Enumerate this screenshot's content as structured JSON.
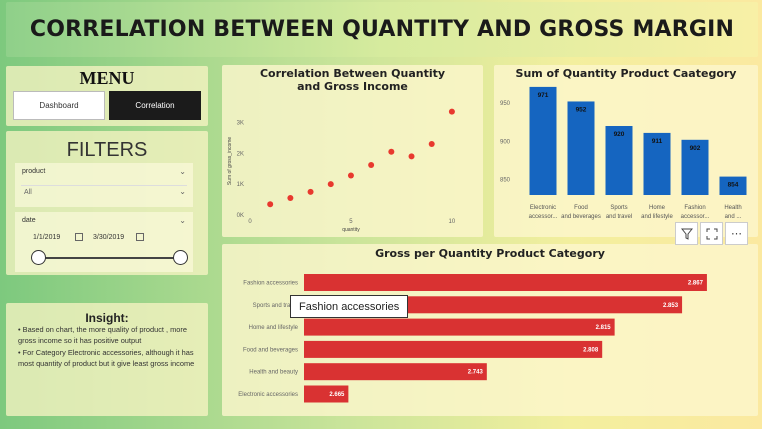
{
  "header": {
    "title": "CORRELATION BETWEEN QUANTITY AND GROSS MARGIN"
  },
  "menu": {
    "title": "MENU",
    "dashboard_label": "Dashboard",
    "correlation_label": "Correlation"
  },
  "filters": {
    "title": "FILTERS",
    "product_label": "product",
    "product_value": "All",
    "date_label": "date",
    "date_start": "1/1/2019",
    "date_end": "3/30/2019"
  },
  "insight": {
    "title": "Insight:",
    "points": [
      "• Based on chart, the more quality of product , more gross income so it has positive output",
      "• For Category Electronic accessories, although  it has most quantity of product but it give least gross income"
    ]
  },
  "tooltip": {
    "text": "Fashion accessories"
  },
  "colors": {
    "scatter": "#e8392e",
    "bar": "#1565c0",
    "hbar": "#d93232"
  },
  "chart_data": [
    {
      "type": "scatter",
      "title": "Correlation Between Quantity and Gross Income",
      "xlabel": "quantity",
      "ylabel": "Sum of gross_income",
      "xlim": [
        0,
        10.5
      ],
      "ylim": [
        0,
        3.5
      ],
      "xticks": [
        "0",
        "5",
        "10"
      ],
      "yticks": [
        "0K",
        "1K",
        "2K",
        "3K"
      ],
      "x": [
        1,
        2,
        3,
        4,
        5,
        6,
        7,
        8,
        9,
        10
      ],
      "y": [
        0.35,
        0.55,
        0.75,
        1.0,
        1.28,
        1.62,
        2.05,
        1.9,
        2.3,
        3.35
      ]
    },
    {
      "type": "bar",
      "title": "Sum of Quantity Product Caategory",
      "categories": [
        "Electronic accessor...",
        "Food and beverages",
        "Sports and travel",
        "Home and lifestyle",
        "Fashion accessor...",
        "Health and ..."
      ],
      "values": [
        971,
        952,
        920,
        911,
        902,
        854
      ],
      "ylim": [
        830,
        980
      ],
      "yticks": [
        "850",
        "900",
        "950"
      ]
    },
    {
      "type": "bar",
      "orientation": "horizontal",
      "title": "Gross per Quantity Product Category",
      "categories": [
        "Fashion accessories",
        "Sports and travel",
        "Home and lifestyle",
        "Food and beverages",
        "Health and beauty",
        "Electronic accessories"
      ],
      "values": [
        2.867,
        2.853,
        2.815,
        2.808,
        2.743,
        2.665
      ],
      "labels": [
        "2.867",
        "2.853",
        "2.815",
        "2.808",
        "2.743",
        "2.665"
      ],
      "xlim": [
        2.64,
        2.88
      ]
    }
  ]
}
